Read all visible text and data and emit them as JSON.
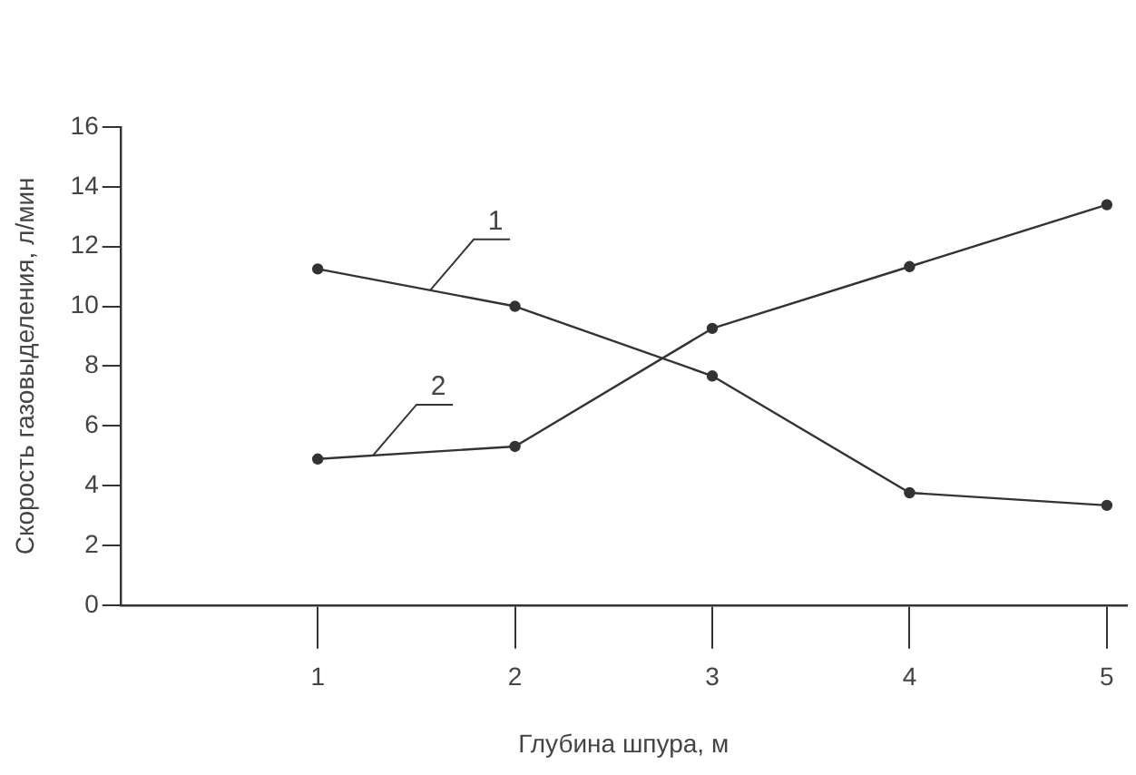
{
  "chart_data": {
    "type": "line",
    "xlabel": "Глубина шпура, м",
    "ylabel": "Скорость газовыделения, л/мин",
    "x": [
      1,
      2,
      3,
      4,
      5
    ],
    "series": [
      {
        "name": "1",
        "color": "#333333",
        "values": [
          11.25,
          10.0,
          7.67,
          3.76,
          3.34
        ]
      },
      {
        "name": "2",
        "color": "#333333",
        "values": [
          4.89,
          5.31,
          9.26,
          11.33,
          13.4
        ]
      }
    ],
    "xlim": [
      0,
      5.1
    ],
    "xticks": [
      1,
      2,
      3,
      4,
      5
    ],
    "ylim": [
      0,
      16
    ],
    "yticks": [
      0,
      2,
      4,
      6,
      8,
      10,
      12,
      14,
      16
    ],
    "grid": false,
    "legend": false,
    "marker": "circle",
    "line_style": "solid"
  }
}
